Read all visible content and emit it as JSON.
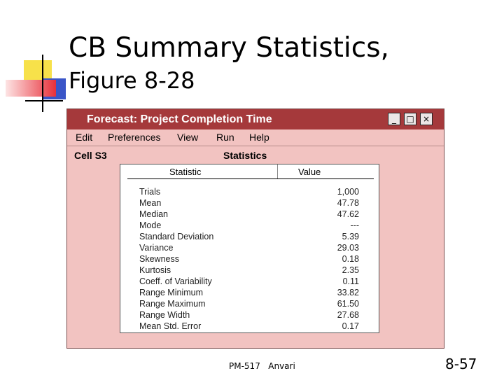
{
  "slide": {
    "title_line1": "CB Summary Statistics,",
    "title_line2": "Figure 8-28",
    "footer": "PM-517   Anvari",
    "page_number": "8-57"
  },
  "window": {
    "title": "Forecast: Project Completion Time",
    "controls": [
      "_",
      "□",
      "×"
    ],
    "menu": [
      "Edit",
      "Preferences",
      "View",
      "Run",
      "Help"
    ],
    "cell_label": "Cell S3",
    "section_title": "Statistics",
    "table": {
      "columns": [
        "Statistic",
        "Value"
      ],
      "rows": [
        {
          "statistic": "Trials",
          "value": "1,000"
        },
        {
          "statistic": "Mean",
          "value": "47.78"
        },
        {
          "statistic": "Median",
          "value": "47.62"
        },
        {
          "statistic": "Mode",
          "value": "---"
        },
        {
          "statistic": "Standard Deviation",
          "value": "5.39"
        },
        {
          "statistic": "Variance",
          "value": "29.03"
        },
        {
          "statistic": "Skewness",
          "value": "0.18"
        },
        {
          "statistic": "Kurtosis",
          "value": "2.35"
        },
        {
          "statistic": "Coeff. of Variability",
          "value": "0.11"
        },
        {
          "statistic": "Range Minimum",
          "value": "33.82"
        },
        {
          "statistic": "Range Maximum",
          "value": "61.50"
        },
        {
          "statistic": "Range Width",
          "value": "27.68"
        },
        {
          "statistic": "Mean Std. Error",
          "value": "0.17"
        }
      ]
    }
  },
  "colors": {
    "titlebar": "#a5393b",
    "window_bg": "#f2c3c1",
    "deco_yellow": "#f7e14a",
    "deco_red": "#e8303a",
    "deco_blue": "#3a55c8"
  }
}
